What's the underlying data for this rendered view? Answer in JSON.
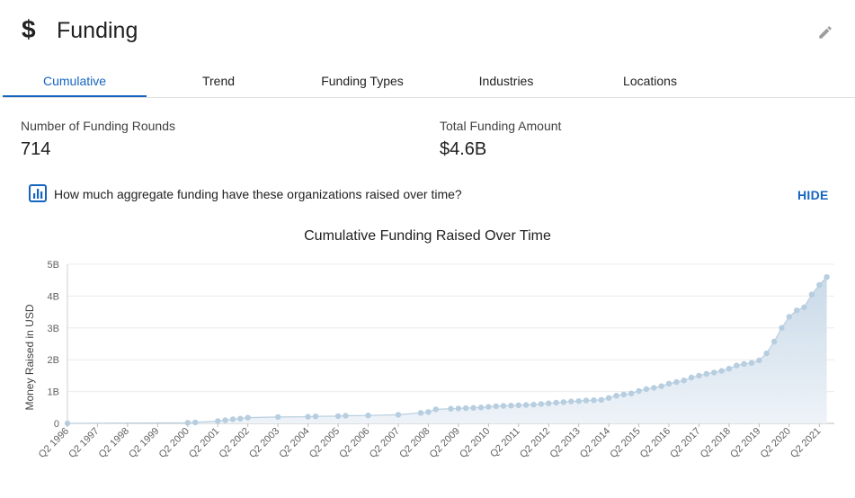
{
  "header": {
    "title": "Funding",
    "dollar_icon": "$"
  },
  "tabs": [
    {
      "label": "Cumulative",
      "active": true
    },
    {
      "label": "Trend",
      "active": false
    },
    {
      "label": "Funding Types",
      "active": false
    },
    {
      "label": "Industries",
      "active": false
    },
    {
      "label": "Locations",
      "active": false
    }
  ],
  "stats": {
    "rounds_label": "Number of Funding Rounds",
    "rounds_value": "714",
    "total_label": "Total Funding Amount",
    "total_value": "$4.6B"
  },
  "question": "How much aggregate funding have these organizations raised over time?",
  "hide_label": "HIDE",
  "colors": {
    "accent": "#1565c0",
    "area": "#d9e6f0",
    "marker": "#b7cee0"
  },
  "chart_data": {
    "type": "area",
    "title": "Cumulative Funding Raised Over Time",
    "ylabel": "Money Raised in USD",
    "xlabel": "",
    "ylim": [
      0,
      5
    ],
    "y_unit": "B",
    "yticks": [
      "0",
      "1B",
      "2B",
      "3B",
      "4B",
      "5B"
    ],
    "xticks": [
      "Q2 1996",
      "Q2 1997",
      "Q2 1998",
      "Q2 1999",
      "Q2 2000",
      "Q2 2001",
      "Q2 2002",
      "Q2 2003",
      "Q2 2004",
      "Q2 2005",
      "Q2 2006",
      "Q2 2007",
      "Q2 2008",
      "Q2 2009",
      "Q2 2010",
      "Q2 2011",
      "Q2 2012",
      "Q2 2013",
      "Q2 2014",
      "Q2 2015",
      "Q2 2016",
      "Q2 2017",
      "Q2 2018",
      "Q2 2019",
      "Q2 2020",
      "Q2 2021"
    ],
    "x_range": [
      "Q2 1996",
      "Q4 2021"
    ],
    "grid": true,
    "points": [
      [
        "Q2 1996",
        0.0
      ],
      [
        "Q2 2000",
        0.02
      ],
      [
        "Q3 2000",
        0.03
      ],
      [
        "Q2 2001",
        0.07
      ],
      [
        "Q3 2001",
        0.1
      ],
      [
        "Q4 2001",
        0.13
      ],
      [
        "Q1 2002",
        0.15
      ],
      [
        "Q2 2002",
        0.18
      ],
      [
        "Q2 2003",
        0.2
      ],
      [
        "Q2 2004",
        0.21
      ],
      [
        "Q3 2004",
        0.22
      ],
      [
        "Q2 2005",
        0.23
      ],
      [
        "Q3 2005",
        0.24
      ],
      [
        "Q2 2006",
        0.25
      ],
      [
        "Q2 2007",
        0.27
      ],
      [
        "Q1 2008",
        0.33
      ],
      [
        "Q2 2008",
        0.36
      ],
      [
        "Q3 2008",
        0.44
      ],
      [
        "Q1 2009",
        0.46
      ],
      [
        "Q2 2009",
        0.47
      ],
      [
        "Q3 2009",
        0.48
      ],
      [
        "Q4 2009",
        0.49
      ],
      [
        "Q1 2010",
        0.5
      ],
      [
        "Q2 2010",
        0.52
      ],
      [
        "Q3 2010",
        0.54
      ],
      [
        "Q4 2010",
        0.55
      ],
      [
        "Q1 2011",
        0.56
      ],
      [
        "Q2 2011",
        0.57
      ],
      [
        "Q3 2011",
        0.58
      ],
      [
        "Q4 2011",
        0.59
      ],
      [
        "Q1 2012",
        0.61
      ],
      [
        "Q2 2012",
        0.63
      ],
      [
        "Q3 2012",
        0.65
      ],
      [
        "Q4 2012",
        0.67
      ],
      [
        "Q1 2013",
        0.69
      ],
      [
        "Q2 2013",
        0.7
      ],
      [
        "Q3 2013",
        0.72
      ],
      [
        "Q4 2013",
        0.73
      ],
      [
        "Q1 2014",
        0.74
      ],
      [
        "Q2 2014",
        0.8
      ],
      [
        "Q3 2014",
        0.87
      ],
      [
        "Q4 2014",
        0.91
      ],
      [
        "Q1 2015",
        0.94
      ],
      [
        "Q2 2015",
        1.02
      ],
      [
        "Q3 2015",
        1.08
      ],
      [
        "Q4 2015",
        1.12
      ],
      [
        "Q1 2016",
        1.17
      ],
      [
        "Q2 2016",
        1.25
      ],
      [
        "Q3 2016",
        1.3
      ],
      [
        "Q4 2016",
        1.35
      ],
      [
        "Q1 2017",
        1.44
      ],
      [
        "Q2 2017",
        1.5
      ],
      [
        "Q3 2017",
        1.56
      ],
      [
        "Q4 2017",
        1.6
      ],
      [
        "Q1 2018",
        1.65
      ],
      [
        "Q2 2018",
        1.72
      ],
      [
        "Q3 2018",
        1.82
      ],
      [
        "Q4 2018",
        1.87
      ],
      [
        "Q1 2019",
        1.9
      ],
      [
        "Q2 2019",
        1.98
      ],
      [
        "Q3 2019",
        2.2
      ],
      [
        "Q4 2019",
        2.57
      ],
      [
        "Q1 2020",
        3.0
      ],
      [
        "Q2 2020",
        3.35
      ],
      [
        "Q3 2020",
        3.55
      ],
      [
        "Q4 2020",
        3.65
      ],
      [
        "Q1 2021",
        4.05
      ],
      [
        "Q2 2021",
        4.35
      ],
      [
        "Q3 2021",
        4.6
      ]
    ]
  }
}
